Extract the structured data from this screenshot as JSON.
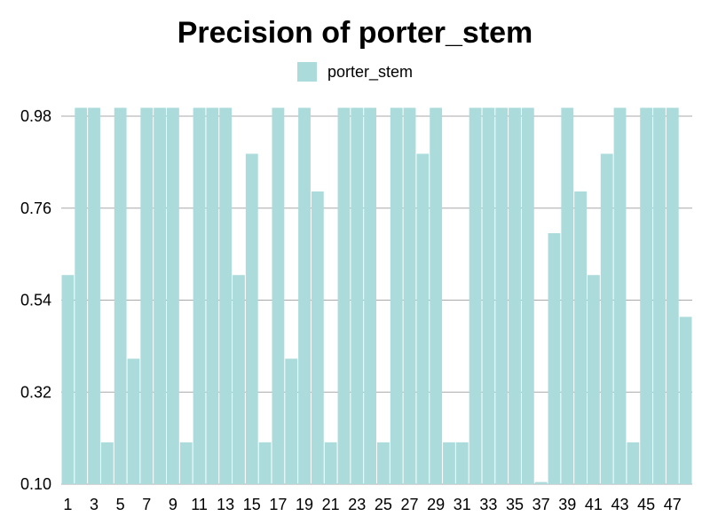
{
  "chart_data": {
    "type": "bar",
    "title": "Precision of porter_stem",
    "xlabel": "",
    "ylabel": "",
    "legend_position": "top-center",
    "grid": true,
    "ylim": [
      0.1,
      0.98
    ],
    "yticks": [
      "0.10",
      "0.32",
      "0.54",
      "0.76",
      "0.98"
    ],
    "categories": [
      1,
      2,
      3,
      4,
      5,
      6,
      7,
      8,
      9,
      10,
      11,
      12,
      13,
      14,
      15,
      16,
      17,
      18,
      19,
      20,
      21,
      22,
      23,
      24,
      25,
      26,
      27,
      28,
      29,
      30,
      31,
      32,
      33,
      34,
      35,
      36,
      37,
      38,
      39,
      40,
      41,
      42,
      43,
      44,
      45,
      46,
      47,
      48
    ],
    "visible_xticks": [
      1,
      3,
      5,
      7,
      9,
      11,
      13,
      15,
      17,
      19,
      21,
      23,
      25,
      27,
      29,
      31,
      33,
      35,
      37,
      39,
      41,
      43,
      45,
      47
    ],
    "series": [
      {
        "name": "porter_stem",
        "color": "#abdbdb",
        "values": [
          0.6,
          1.0,
          1.0,
          0.2,
          1.0,
          0.4,
          1.0,
          1.0,
          1.0,
          0.2,
          1.0,
          1.0,
          1.0,
          0.6,
          0.89,
          0.2,
          1.0,
          0.4,
          1.0,
          0.8,
          0.2,
          1.0,
          1.0,
          1.0,
          0.2,
          1.0,
          1.0,
          0.89,
          1.0,
          0.2,
          0.2,
          1.0,
          1.0,
          1.0,
          1.0,
          1.0,
          0.105,
          0.7,
          1.0,
          0.8,
          0.6,
          0.89,
          1.0,
          0.2,
          1.0,
          1.0,
          1.0,
          0.5
        ]
      }
    ]
  }
}
